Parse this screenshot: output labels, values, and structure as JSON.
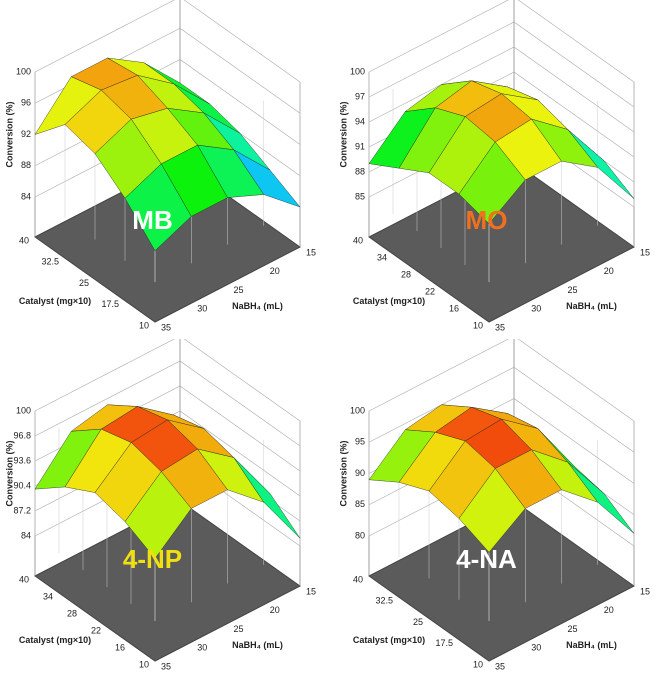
{
  "chart_data": [
    {
      "type": "surface",
      "title": "MB",
      "title_color": "#ffffff",
      "zlabel": "Conversion (%)",
      "xlabel": "NaBH₄ (mL)",
      "ylabel": "Catalyst (mg×10)",
      "x": [
        15,
        20,
        25,
        30,
        35
      ],
      "y": [
        10,
        17.5,
        25,
        32.5,
        40
      ],
      "z": [
        [
          84,
          88,
          90,
          90,
          88
        ],
        [
          86,
          91,
          94,
          94,
          92
        ],
        [
          88,
          93,
          96,
          97,
          95
        ],
        [
          89,
          94,
          97.5,
          98,
          96
        ],
        [
          89,
          94,
          97,
          97,
          92
        ]
      ],
      "xlim": [
        15,
        35
      ],
      "ylim": [
        10,
        40
      ],
      "zlim": [
        84,
        100
      ],
      "xticks": [
        15,
        20,
        25,
        30,
        35
      ],
      "yticks": [
        10,
        17.5,
        25,
        32.5,
        40
      ],
      "zticks": [
        84,
        88,
        92,
        96,
        100
      ]
    },
    {
      "type": "surface",
      "title": "MO",
      "title_color": "#f07020",
      "zlabel": "Conversion (%)",
      "xlabel": "NaBH₄ (mL)",
      "ylabel": "Catalyst (mg×10)",
      "x": [
        15,
        20,
        25,
        30,
        35
      ],
      "y": [
        10,
        17.5,
        25,
        32.5,
        40
      ],
      "z": [
        [
          86,
          92,
          95,
          95,
          92
        ],
        [
          88,
          94,
          97.5,
          97,
          93
        ],
        [
          88,
          95,
          98,
          97.5,
          93
        ],
        [
          87,
          94,
          97,
          96,
          91
        ],
        [
          86,
          92,
          94,
          93,
          89
        ]
      ],
      "xlim": [
        15,
        35
      ],
      "ylim": [
        10,
        40
      ],
      "zlim": [
        85,
        100
      ],
      "xticks": [
        15,
        20,
        25,
        30,
        35
      ],
      "yticks": [
        10,
        16,
        22,
        28,
        34,
        40
      ],
      "zticks": [
        85,
        88,
        91,
        94,
        97,
        100
      ]
    },
    {
      "type": "surface",
      "title": "4-NP",
      "title_color": "#f0e010",
      "zlabel": "Conversion (%)",
      "xlabel": "NaBH₄ (mL)",
      "ylabel": "Catalyst (mg×10)",
      "x": [
        15,
        20,
        25,
        30,
        35
      ],
      "y": [
        10,
        17.5,
        25,
        32.5,
        40
      ],
      "z": [
        [
          85,
          92,
          96,
          96,
          92
        ],
        [
          88,
          95,
          98.5,
          98,
          94
        ],
        [
          88,
          96,
          99.5,
          99,
          95
        ],
        [
          87,
          95,
          98.5,
          98,
          93
        ],
        [
          85,
          92,
          96,
          95,
          90
        ]
      ],
      "xlim": [
        15,
        35
      ],
      "ylim": [
        10,
        40
      ],
      "zlim": [
        84,
        100
      ],
      "xticks": [
        15,
        20,
        25,
        30,
        35
      ],
      "yticks": [
        10,
        16,
        22,
        28,
        34,
        40
      ],
      "zticks": [
        84,
        87.2,
        90.4,
        93.6,
        96.8,
        100
      ]
    },
    {
      "type": "surface",
      "title": "4-NA",
      "title_color": "#ffffff",
      "zlabel": "Conversion (%)",
      "xlabel": "NaBH₄ (mL)",
      "ylabel": "Catalyst (mg×10)",
      "x": [
        15,
        20,
        25,
        30,
        35
      ],
      "y": [
        10,
        17.5,
        25,
        32.5,
        40
      ],
      "z": [
        [
          82,
          90,
          95,
          95,
          91
        ],
        [
          85,
          93,
          98,
          98,
          93
        ],
        [
          86,
          95,
          99.5,
          99,
          94
        ],
        [
          85,
          94,
          98,
          97,
          92
        ],
        [
          83,
          91,
          95,
          94,
          89
        ]
      ],
      "xlim": [
        15,
        35
      ],
      "ylim": [
        10,
        40
      ],
      "zlim": [
        80,
        100
      ],
      "xticks": [
        15,
        20,
        25,
        30,
        35
      ],
      "yticks": [
        10,
        17.5,
        25,
        32.5,
        40
      ],
      "zticks": [
        80,
        85,
        90,
        95,
        100
      ]
    }
  ]
}
